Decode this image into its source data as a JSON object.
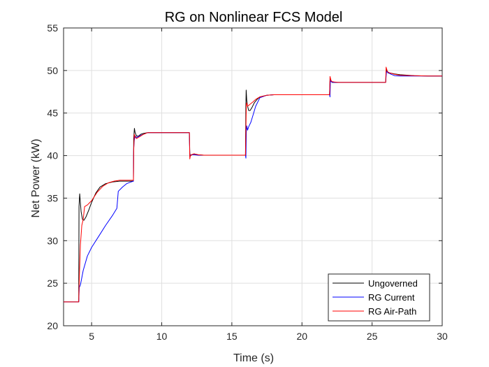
{
  "chart_data": {
    "type": "line",
    "title": "RG on Nonlinear FCS Model",
    "xlabel": "Time (s)",
    "ylabel": "Net Power (kW)",
    "xlim": [
      3,
      30
    ],
    "ylim": [
      20,
      55
    ],
    "xticks": [
      5,
      10,
      15,
      20,
      25,
      30
    ],
    "yticks": [
      20,
      25,
      30,
      35,
      40,
      45,
      50,
      55
    ],
    "grid": true,
    "legend_position": "bottom-right",
    "series": [
      {
        "name": "Ungoverned",
        "color": "#000000",
        "x": [
          3.0,
          4.0,
          4.08,
          4.1,
          4.15,
          4.25,
          4.35,
          4.45,
          4.6,
          4.8,
          5.0,
          5.3,
          5.6,
          6.0,
          6.5,
          7.0,
          7.5,
          7.98,
          8.0,
          8.05,
          8.1,
          8.2,
          8.35,
          8.5,
          8.7,
          9.0,
          9.5,
          10.0,
          11.0,
          11.97,
          12.0,
          12.02,
          12.05,
          12.15,
          12.3,
          12.6,
          13.0,
          14.0,
          15.97,
          16.0,
          16.02,
          16.06,
          16.12,
          16.2,
          16.3,
          16.45,
          16.6,
          16.8,
          17.0,
          17.5,
          18.0,
          19.0,
          21.97,
          22.0,
          22.03,
          22.08,
          22.15,
          22.3,
          22.6,
          23.0,
          25.97,
          26.0,
          26.03,
          26.08,
          26.15,
          26.3,
          26.6,
          27.0,
          28.0,
          29.0,
          30.0
        ],
        "y": [
          22.8,
          22.8,
          22.8,
          34.0,
          35.5,
          33.4,
          32.5,
          32.4,
          32.8,
          33.6,
          34.5,
          35.6,
          36.3,
          36.7,
          36.9,
          37.0,
          37.0,
          37.0,
          42.0,
          43.2,
          42.7,
          42.3,
          42.3,
          42.5,
          42.6,
          42.7,
          42.7,
          42.7,
          42.7,
          42.7,
          40.3,
          40.1,
          40.0,
          40.1,
          40.2,
          40.1,
          40.05,
          40.05,
          40.05,
          46.0,
          47.7,
          46.5,
          45.8,
          45.3,
          45.3,
          45.7,
          46.2,
          46.6,
          46.9,
          47.1,
          47.15,
          47.15,
          47.15,
          48.8,
          49.0,
          48.8,
          48.6,
          48.6,
          48.6,
          48.6,
          48.6,
          49.8,
          50.2,
          49.9,
          49.7,
          49.7,
          49.6,
          49.5,
          49.4,
          49.35,
          49.35
        ]
      },
      {
        "name": "RG Current",
        "color": "#0000ff",
        "x": [
          3.0,
          4.0,
          4.08,
          4.12,
          4.2,
          4.4,
          4.7,
          5.0,
          5.5,
          6.0,
          6.5,
          6.8,
          6.9,
          7.2,
          7.5,
          7.8,
          7.98,
          8.0,
          8.04,
          8.1,
          8.2,
          8.4,
          8.7,
          9.0,
          9.5,
          10.0,
          11.0,
          11.97,
          12.0,
          12.03,
          12.1,
          12.3,
          12.6,
          13.0,
          14.0,
          15.97,
          16.0,
          16.03,
          16.06,
          16.12,
          16.2,
          16.35,
          16.5,
          16.7,
          17.0,
          17.5,
          18.0,
          19.0,
          21.97,
          22.0,
          22.03,
          22.08,
          22.2,
          22.5,
          23.0,
          25.97,
          26.0,
          26.03,
          26.1,
          26.3,
          26.6,
          27.0,
          28.0,
          29.0,
          30.0
        ],
        "y": [
          22.8,
          22.8,
          22.8,
          24.5,
          24.8,
          26.5,
          28.2,
          29.2,
          30.5,
          31.8,
          33.0,
          33.8,
          35.8,
          36.3,
          36.7,
          36.9,
          37.0,
          40.8,
          41.8,
          42.3,
          42.1,
          42.3,
          42.5,
          42.7,
          42.7,
          42.7,
          42.7,
          42.7,
          39.9,
          40.0,
          40.1,
          40.1,
          40.05,
          40.05,
          40.05,
          40.05,
          39.7,
          42.8,
          43.5,
          43.0,
          43.4,
          43.9,
          44.7,
          45.8,
          46.8,
          47.1,
          47.15,
          47.15,
          47.15,
          46.9,
          48.9,
          48.7,
          48.6,
          48.6,
          48.6,
          48.6,
          49.3,
          49.9,
          49.8,
          49.6,
          49.4,
          49.35,
          49.35,
          49.35,
          49.35
        ]
      },
      {
        "name": "RG Air-Path",
        "color": "#ff0000",
        "x": [
          3.0,
          4.0,
          4.08,
          4.12,
          4.2,
          4.3,
          4.4,
          4.5,
          4.7,
          5.0,
          5.4,
          5.8,
          6.2,
          6.6,
          7.0,
          7.5,
          7.98,
          8.0,
          8.04,
          8.1,
          8.2,
          8.4,
          8.7,
          9.0,
          9.5,
          10.0,
          11.0,
          11.97,
          12.0,
          12.03,
          12.1,
          12.3,
          12.6,
          13.0,
          14.0,
          15.97,
          16.0,
          16.03,
          16.06,
          16.12,
          16.2,
          16.35,
          16.5,
          16.7,
          17.0,
          17.5,
          18.0,
          19.0,
          21.97,
          22.0,
          22.03,
          22.08,
          22.15,
          22.3,
          22.6,
          23.0,
          25.97,
          26.0,
          26.03,
          26.08,
          26.15,
          26.3,
          26.6,
          27.0,
          28.0,
          29.0,
          30.0
        ],
        "y": [
          22.8,
          22.8,
          22.8,
          25.5,
          29.5,
          31.8,
          32.5,
          34.0,
          34.2,
          34.7,
          35.7,
          36.4,
          36.8,
          37.0,
          37.1,
          37.1,
          37.1,
          40.5,
          42.5,
          42.2,
          42.0,
          42.2,
          42.5,
          42.7,
          42.7,
          42.7,
          42.7,
          42.7,
          39.6,
          39.9,
          40.1,
          40.2,
          40.1,
          40.05,
          40.05,
          40.05,
          43.0,
          46.0,
          46.2,
          45.8,
          45.9,
          46.1,
          46.3,
          46.6,
          46.9,
          47.1,
          47.15,
          47.15,
          47.15,
          49.3,
          49.1,
          48.8,
          48.7,
          48.65,
          48.6,
          48.6,
          48.6,
          50.4,
          50.2,
          49.95,
          49.8,
          49.7,
          49.55,
          49.45,
          49.4,
          49.35,
          49.35
        ]
      }
    ]
  }
}
